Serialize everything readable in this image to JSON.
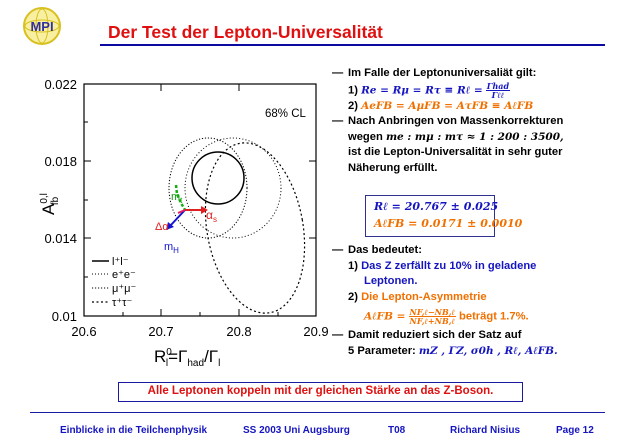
{
  "logo": {
    "text": "MPI",
    "colors": {
      "ring": "#d8c020",
      "text": "#3030a0"
    }
  },
  "header": {
    "title": "Der Test der Lepton-Universalität"
  },
  "plot": {
    "y_ticks": [
      "0.022",
      "0.018",
      "0.014",
      "0.01"
    ],
    "x_ticks": [
      "20.6",
      "20.7",
      "20.8",
      "20.9"
    ],
    "cl_label": "68% CL",
    "ylabel_main": "A",
    "ylabel_sup": "0,l",
    "ylabel_sub": "fb",
    "xlabel_main": "R",
    "xlabel_sup": "0",
    "xlabel_sub": "l",
    "xlabel_rest": "=Γ",
    "xlabel_sub2": "had",
    "xlabel_rest2": "/Γ",
    "xlabel_sub3": "l",
    "legend": [
      "l⁺l⁻",
      "e⁺e⁻",
      "μ⁺μ⁻",
      "τ⁺τ⁻"
    ],
    "label_mt": "m",
    "label_mt_sub": "t",
    "label_mh": "m",
    "label_mh_sub": "H",
    "label_da": "Δα",
    "label_as": "α",
    "label_as_sub": "s"
  },
  "bullets": {
    "b1": "Im Falle der Leptonuniversaliät gilt:",
    "b1_1_num": "1)",
    "b1_1_formula": "Re = Rμ = Rτ ≡ Rℓ =",
    "b1_1_frac_num": "Γhad",
    "b1_1_frac_den": "Γℓℓ",
    "b1_2_num": "2)",
    "b1_2_formula": "AeFB = AμFB = AτFB ≡ AℓFB",
    "b2_line1": "Nach Anbringen von Massenkorrekturen",
    "b2_line2_a": "wegen",
    "b2_line2_formula": "me : mμ : mτ ≈ 1 : 200 : 3500,",
    "b2_line3": "ist die Lepton-Universalität in sehr guter",
    "b2_line4": "Näherung erfüllt.",
    "result1": "Rℓ = 20.767 ± 0.025",
    "result2": "AℓFB = 0.0171 ± 0.0010",
    "b3": "Das bedeutet:",
    "b3_1_num": "1)",
    "b3_1_a": "Das Z zerfällt zu 10% in geladene",
    "b3_1_b": "Leptonen.",
    "b3_2_num": "2)",
    "b3_2_a": "Die Lepton-Asymmetrie",
    "b3_2_formula": "AℓFB =",
    "b3_2_frac_num": "NF,ℓ−NB,ℓ",
    "b3_2_frac_den": "NF,ℓ+NB,ℓ",
    "b3_2_rest": "beträgt 1.7%.",
    "b4_line1": "Damit reduziert sich der Satz auf",
    "b4_line2_a": "5 Parameter:",
    "b4_line2_formula": "mZ , ΓZ, σ0h , Rℓ, AℓFB."
  },
  "callout": "Alle Leptonen koppeln mit der gleichen Stärke an das Z-Boson.",
  "footer": {
    "course": "Einblicke in die Teilchenphysik",
    "semester": "SS 2003 Uni Augsburg",
    "code": "T08",
    "author": "Richard Nisius",
    "page": "Page 12"
  }
}
